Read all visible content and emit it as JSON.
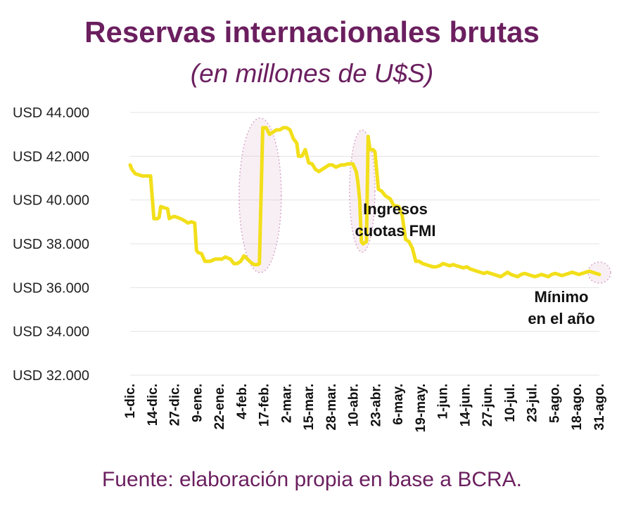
{
  "title": "Reservas internacionales brutas",
  "subtitle": "(en millones de U$S)",
  "source": "Fuente: elaboración propia en base a BCRA.",
  "colors": {
    "title": "#6b1f5f",
    "line": "#f2df1a",
    "grid": "#e3e3e3",
    "highlight": "#d8a8c8"
  },
  "chart_data": {
    "type": "line",
    "title": "Reservas internacionales brutas",
    "subtitle": "(en millones de U$S)",
    "ylim": [
      32000,
      44000
    ],
    "yticks": [
      44000,
      42000,
      40000,
      38000,
      36000,
      34000,
      32000
    ],
    "ytick_labels": [
      "USD 44.000",
      "USD 42.000",
      "USD 40.000",
      "USD 38.000",
      "USD 36.000",
      "USD 34.000",
      "USD 32.000"
    ],
    "xtick_labels": [
      "1-dic.",
      "14-dic.",
      "27-dic.",
      "9-ene.",
      "22-ene.",
      "4-feb.",
      "17-feb.",
      "2-mar.",
      "15-mar.",
      "28-mar.",
      "10-abr.",
      "23-abr.",
      "6-may.",
      "19-may.",
      "1-jun.",
      "14-jun.",
      "27-jun.",
      "10-jul.",
      "23-jul.",
      "5-ago.",
      "18-ago.",
      "31-ago."
    ],
    "grid": true,
    "x_days": [
      0,
      1,
      2,
      3,
      5,
      7,
      10,
      12,
      14,
      16,
      17,
      18,
      20,
      22,
      23,
      24,
      26,
      28,
      31,
      33,
      34,
      36,
      38,
      39,
      40,
      42,
      44,
      47,
      50,
      52,
      54,
      56,
      59,
      61,
      63,
      65,
      67,
      69,
      71,
      72,
      73,
      75,
      76,
      78,
      80,
      82,
      84,
      86,
      88,
      90,
      92,
      94,
      96,
      98,
      99,
      101,
      103,
      105,
      107,
      109,
      111,
      113,
      115,
      117,
      119,
      121,
      124,
      126,
      128,
      131,
      133,
      134,
      135,
      136,
      137,
      139,
      140,
      141,
      142,
      143,
      144,
      146,
      148,
      150,
      153,
      155,
      158,
      160,
      162,
      164,
      166,
      168,
      170,
      172,
      174,
      176,
      178,
      180,
      182,
      184,
      186,
      188,
      190,
      192,
      194,
      196,
      198,
      200,
      202,
      204,
      206,
      208,
      210,
      212,
      214,
      216,
      218,
      220,
      222,
      224,
      226,
      228,
      230,
      232,
      234,
      236,
      238,
      240,
      242,
      244,
      246,
      248,
      250,
      252,
      254,
      256,
      258,
      260,
      262,
      264,
      266,
      268,
      270,
      272,
      274,
      276
    ],
    "values": [
      41600,
      41400,
      41300,
      41200,
      41150,
      41100,
      41100,
      41100,
      39150,
      39150,
      39200,
      39700,
      39650,
      39600,
      39150,
      39200,
      39250,
      39200,
      39100,
      39000,
      38950,
      39000,
      38950,
      37700,
      37600,
      37550,
      37200,
      37200,
      37300,
      37300,
      37300,
      37400,
      37300,
      37100,
      37100,
      37200,
      37450,
      37300,
      37150,
      37100,
      37050,
      37050,
      37100,
      43300,
      43300,
      43000,
      43100,
      43200,
      43200,
      43300,
      43300,
      43200,
      42800,
      42600,
      42000,
      42000,
      42300,
      41700,
      41650,
      41400,
      41300,
      41400,
      41500,
      41600,
      41600,
      41500,
      41600,
      41600,
      41650,
      41650,
      41300,
      40800,
      40000,
      38100,
      38000,
      38100,
      42900,
      42300,
      42300,
      42300,
      42200,
      40500,
      40400,
      40200,
      40050,
      39750,
      39700,
      39300,
      38200,
      38100,
      37800,
      37200,
      37200,
      37100,
      37050,
      37000,
      36950,
      36950,
      37000,
      37100,
      37050,
      37000,
      37050,
      37000,
      36950,
      36900,
      36950,
      36850,
      36800,
      36750,
      36700,
      36650,
      36700,
      36650,
      36600,
      36550,
      36500,
      36600,
      36700,
      36600,
      36550,
      36500,
      36600,
      36650,
      36600,
      36550,
      36500,
      36550,
      36600,
      36550,
      36500,
      36600,
      36650,
      36600,
      36550,
      36600,
      36650,
      36700,
      36650,
      36600,
      36650,
      36700,
      36750,
      36700,
      36650,
      36600
    ],
    "annotations": [
      {
        "text_lines": [
          "Ingresos",
          "cuotas FMI"
        ]
      },
      {
        "text_lines": [
          "Mínimo",
          "en el año"
        ]
      }
    ]
  }
}
